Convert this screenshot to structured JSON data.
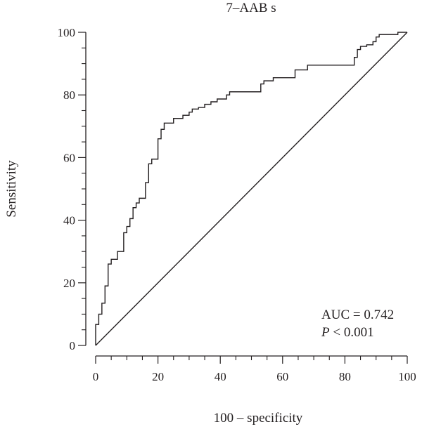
{
  "chart_data": {
    "type": "line",
    "title": "7–AAB s",
    "xlabel": "100 – specificity",
    "ylabel": "Sensitivity",
    "xlim": [
      0,
      100
    ],
    "ylim": [
      0,
      100
    ],
    "xticks": [
      0,
      20,
      40,
      60,
      80,
      100
    ],
    "yticks": [
      0,
      20,
      40,
      60,
      80,
      100
    ],
    "minor_tick_step": 5,
    "grid": false,
    "legend": "none",
    "annotations": {
      "auc": "AUC = 0.742",
      "p_symbol": "P",
      "p_value": " < 0.001"
    },
    "series": [
      {
        "style": "step",
        "color": "#231f20",
        "points": [
          [
            0,
            0
          ],
          [
            0,
            6.7
          ],
          [
            1,
            6.7
          ],
          [
            1,
            10
          ],
          [
            2,
            10
          ],
          [
            2,
            13.5
          ],
          [
            3,
            13.5
          ],
          [
            3,
            19
          ],
          [
            4,
            19
          ],
          [
            4,
            26
          ],
          [
            5,
            26
          ],
          [
            5,
            27.5
          ],
          [
            7,
            27.5
          ],
          [
            7,
            30
          ],
          [
            9,
            30
          ],
          [
            9,
            36
          ],
          [
            10,
            36
          ],
          [
            10,
            38
          ],
          [
            11,
            38
          ],
          [
            11,
            40.5
          ],
          [
            12,
            40.5
          ],
          [
            12,
            44
          ],
          [
            13,
            44
          ],
          [
            13,
            45.5
          ],
          [
            14,
            45.5
          ],
          [
            14,
            47
          ],
          [
            16,
            47
          ],
          [
            16,
            52
          ],
          [
            17,
            52
          ],
          [
            17,
            58
          ],
          [
            18,
            58
          ],
          [
            18,
            59.5
          ],
          [
            20,
            59.5
          ],
          [
            20,
            66
          ],
          [
            21,
            66
          ],
          [
            21,
            69
          ],
          [
            22,
            69
          ],
          [
            22,
            71
          ],
          [
            25,
            71
          ],
          [
            25,
            72.5
          ],
          [
            28,
            72.5
          ],
          [
            28,
            73.5
          ],
          [
            30,
            73.5
          ],
          [
            30,
            74.5
          ],
          [
            31,
            74.5
          ],
          [
            31,
            75.5
          ],
          [
            33,
            75.5
          ],
          [
            33,
            76
          ],
          [
            35,
            76
          ],
          [
            35,
            77
          ],
          [
            37,
            77
          ],
          [
            37,
            77.8
          ],
          [
            39,
            77.8
          ],
          [
            39,
            78.7
          ],
          [
            42,
            78.7
          ],
          [
            42,
            80
          ],
          [
            43,
            80
          ],
          [
            43,
            81
          ],
          [
            53,
            81
          ],
          [
            53,
            83.5
          ],
          [
            54,
            83.5
          ],
          [
            54,
            84.5
          ],
          [
            57,
            84.5
          ],
          [
            57,
            85.5
          ],
          [
            64,
            85.5
          ],
          [
            64,
            88
          ],
          [
            68,
            88
          ],
          [
            68,
            89.5
          ],
          [
            83,
            89.5
          ],
          [
            83,
            92
          ],
          [
            84,
            92
          ],
          [
            84,
            94.5
          ],
          [
            85,
            94.5
          ],
          [
            85,
            95.5
          ],
          [
            87,
            95.5
          ],
          [
            87,
            96
          ],
          [
            89,
            96
          ],
          [
            89,
            97
          ],
          [
            90,
            97
          ],
          [
            90,
            98.5
          ],
          [
            91,
            98.5
          ],
          [
            91,
            99.3
          ],
          [
            97,
            99.3
          ],
          [
            97,
            100
          ],
          [
            100,
            100
          ]
        ]
      },
      {
        "style": "diagonal",
        "color": "#231f20",
        "points": [
          [
            0,
            0
          ],
          [
            100,
            100
          ]
        ]
      }
    ]
  }
}
